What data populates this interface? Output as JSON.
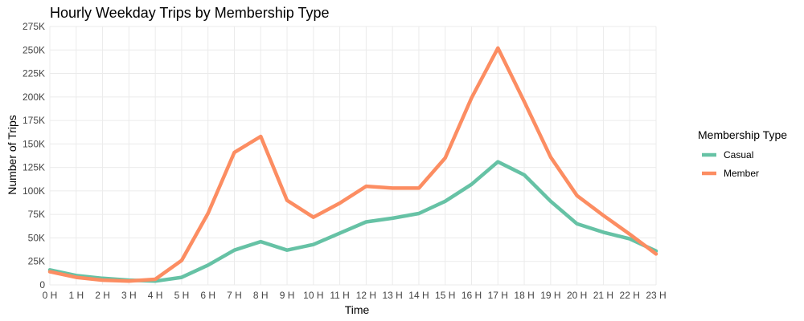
{
  "chart_data": {
    "type": "line",
    "title": "Hourly Weekday Trips by Membership Type",
    "xlabel": "Time",
    "ylabel": "Number of Trips",
    "categories": [
      "0 H",
      "1 H",
      "2 H",
      "3 H",
      "4 H",
      "5 H",
      "6 H",
      "7 H",
      "8 H",
      "9 H",
      "10 H",
      "11 H",
      "12 H",
      "13 H",
      "14 H",
      "15 H",
      "16 H",
      "17 H",
      "18 H",
      "19 H",
      "20 H",
      "21 H",
      "22 H",
      "23 H"
    ],
    "y_ticks": [
      0,
      25000,
      50000,
      75000,
      100000,
      125000,
      150000,
      175000,
      200000,
      225000,
      250000,
      275000
    ],
    "y_tick_labels": [
      "0",
      "25K",
      "50K",
      "75K",
      "100K",
      "125K",
      "150K",
      "175K",
      "200K",
      "225K",
      "250K",
      "275K"
    ],
    "ylim": [
      0,
      275000
    ],
    "grid": true,
    "legend": {
      "title": "Membership Type",
      "position": "right"
    },
    "series": [
      {
        "name": "Casual",
        "color": "#66c2a5",
        "values": [
          16000,
          10000,
          7000,
          5000,
          4000,
          8000,
          21000,
          37000,
          46000,
          37000,
          43000,
          55000,
          67000,
          71000,
          76000,
          89000,
          107000,
          131000,
          117000,
          89000,
          65000,
          56000,
          49000,
          36000
        ]
      },
      {
        "name": "Member",
        "color": "#fc8d62",
        "values": [
          14000,
          8000,
          5000,
          4000,
          6000,
          26000,
          76000,
          141000,
          158000,
          90000,
          72000,
          87000,
          105000,
          103000,
          103000,
          135000,
          199000,
          252000,
          195000,
          136000,
          95000,
          74000,
          54000,
          33000
        ]
      }
    ]
  }
}
